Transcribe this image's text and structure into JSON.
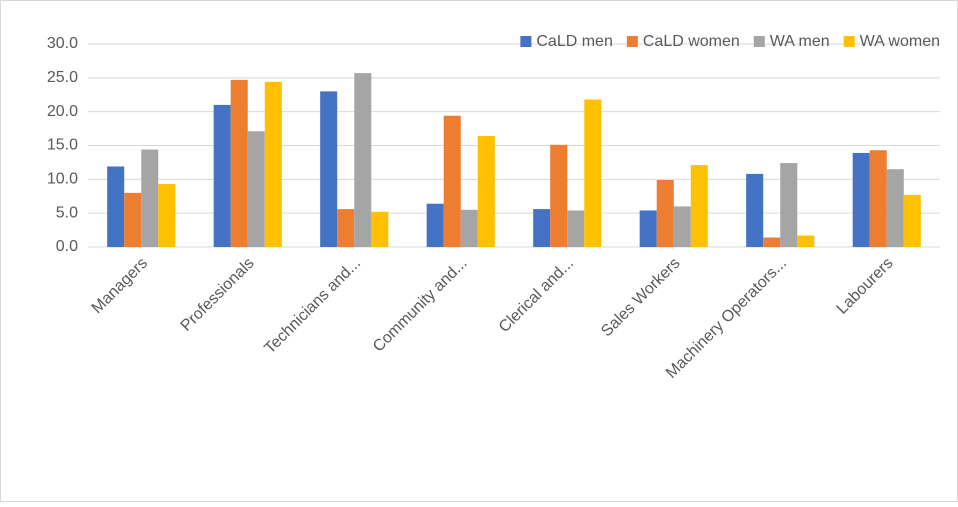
{
  "chart_data": {
    "type": "bar",
    "categories": [
      "Managers",
      "Professionals",
      "Technicians and...",
      "Community and...",
      "Clerical and...",
      "Sales Workers",
      "Machinery Operators...",
      "Labourers"
    ],
    "series": [
      {
        "name": "CaLD men",
        "color": "#4472c4",
        "values": [
          11.9,
          21.0,
          23.0,
          6.4,
          5.6,
          5.4,
          10.8,
          13.9
        ]
      },
      {
        "name": "CaLD women",
        "color": "#ed7d31",
        "values": [
          8.0,
          24.7,
          5.6,
          19.4,
          15.1,
          9.9,
          1.4,
          14.3
        ]
      },
      {
        "name": "WA men",
        "color": "#a5a5a5",
        "values": [
          14.4,
          17.1,
          25.7,
          5.5,
          5.4,
          6.0,
          12.4,
          11.5
        ]
      },
      {
        "name": "WA women",
        "color": "#ffc000",
        "values": [
          9.3,
          24.4,
          5.2,
          16.4,
          21.8,
          12.1,
          1.7,
          7.7
        ]
      }
    ],
    "ylim": [
      0,
      30
    ],
    "yticks": [
      {
        "value": 0,
        "label": "0.0"
      },
      {
        "value": 5,
        "label": "5.0"
      },
      {
        "value": 10,
        "label": "10.0"
      },
      {
        "value": 15,
        "label": "15.0"
      },
      {
        "value": 20,
        "label": "20.0"
      },
      {
        "value": 25,
        "label": "25.0"
      },
      {
        "value": 30,
        "label": "30.0"
      }
    ],
    "grid": true,
    "legend": "top-right"
  }
}
